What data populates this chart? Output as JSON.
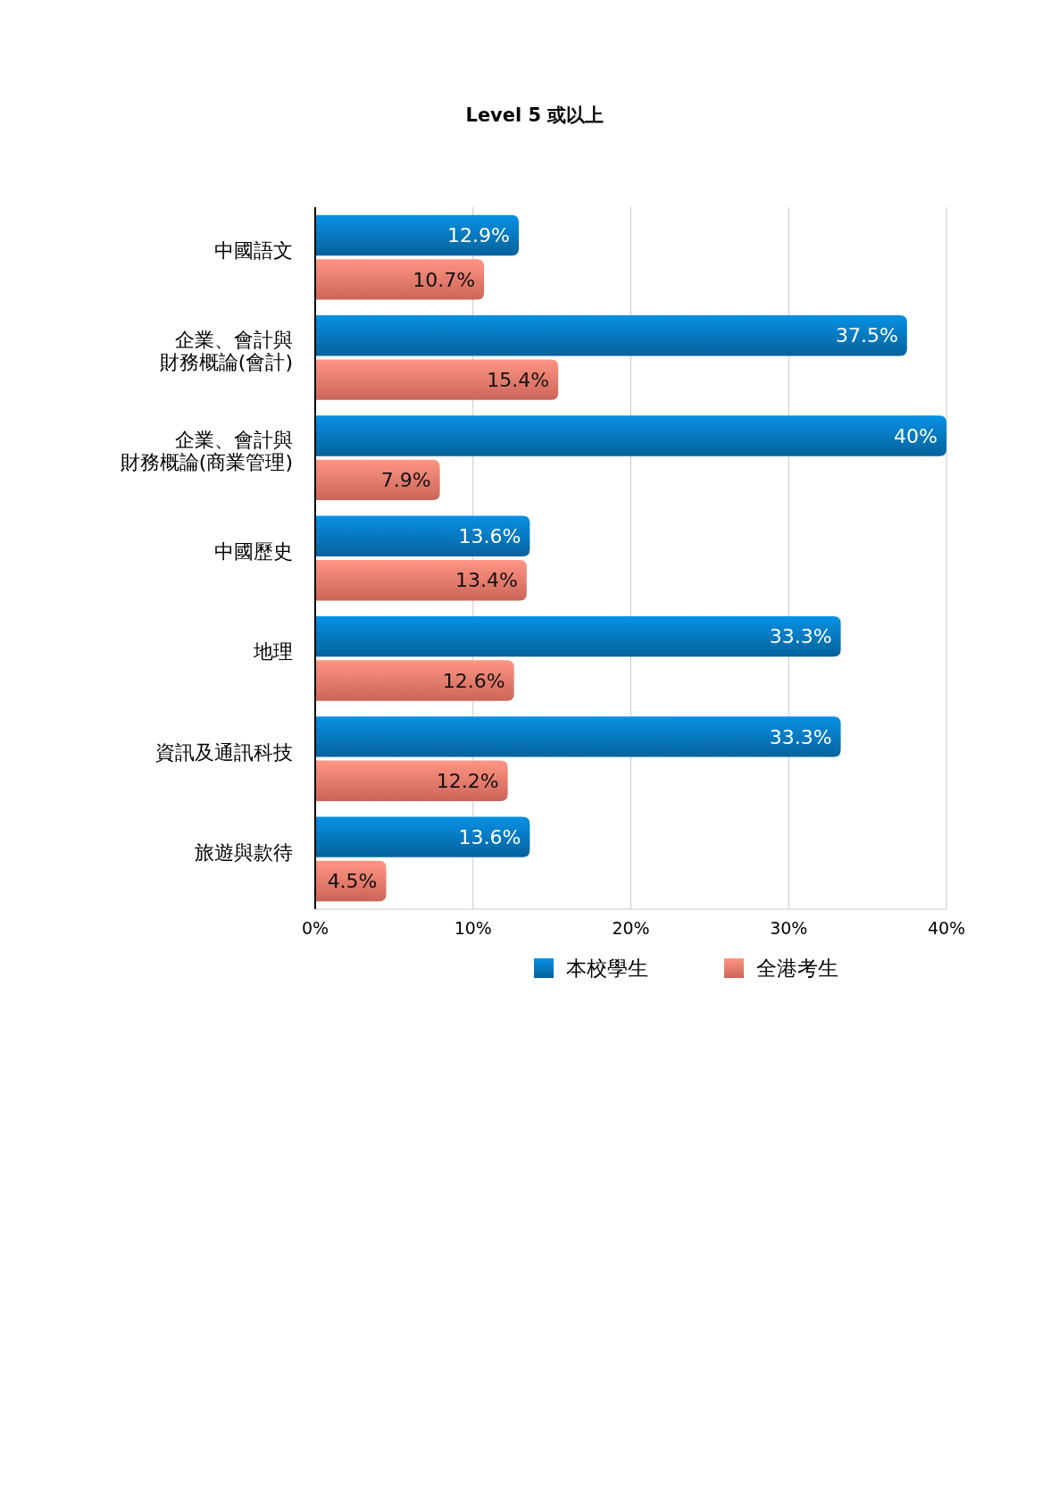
{
  "chart_data": {
    "type": "bar",
    "orientation": "horizontal",
    "title": "Level 5 或以上",
    "categories": [
      "中國語文",
      "企業、會計與財務概論(會計)",
      "企業、會計與財務概論(商業管理)",
      "中國歷史",
      "地理",
      "資訊及通訊科技",
      "旅遊與款待"
    ],
    "series": [
      {
        "name": "本校學生",
        "color": "#0679c0",
        "values": [
          12.9,
          37.5,
          40,
          13.6,
          33.3,
          33.3,
          13.6
        ],
        "value_labels": [
          "12.9%",
          "37.5%",
          "40%",
          "13.6%",
          "33.3%",
          "33.3%",
          "13.6%"
        ]
      },
      {
        "name": "全港考生",
        "color": "#fb7d6e",
        "values": [
          10.7,
          15.4,
          7.9,
          13.4,
          12.6,
          12.2,
          4.5
        ],
        "value_labels": [
          "10.7%",
          "15.4%",
          "7.9%",
          "13.4%",
          "12.6%",
          "12.2%",
          "4.5%"
        ]
      }
    ],
    "xlim": [
      0,
      40
    ],
    "xticks": [
      {
        "value": 0,
        "label": "0%"
      },
      {
        "value": 10,
        "label": "10%"
      },
      {
        "value": 20,
        "label": "20%"
      },
      {
        "value": 30,
        "label": "30%"
      },
      {
        "value": 40,
        "label": "40%"
      }
    ],
    "grid": "x",
    "legend": "bottom"
  }
}
